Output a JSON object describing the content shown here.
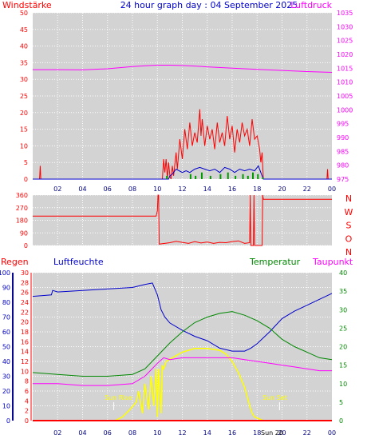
{
  "colors": {
    "background": "#ffffff",
    "plot": "#d3d3d3",
    "grid": "#ffffff",
    "wind": "#ff0000",
    "gust_avg": "#0000cc",
    "wind_green": "#009900",
    "pressure": "#ff00ff",
    "direction": "#ff0000",
    "rain": "#ff0000",
    "humidity": "#0000cc",
    "temperature": "#008800",
    "dewpoint": "#ff00ff",
    "solar": "#ffff00",
    "sun_label": "#ffff00"
  },
  "page": {
    "title": "24 hour graph day : 04 September 2025"
  },
  "chart_data": [
    {
      "type": "line",
      "title": "24 hour graph day : 04 September 2025",
      "left_label": "Windstärke",
      "right_label": "Luftdruck",
      "y_left_ticks": [
        "50",
        "45",
        "40",
        "35",
        "30",
        "25",
        "20",
        "15",
        "10",
        "5",
        "0"
      ],
      "y_right_ticks": [
        "1035",
        "1030",
        "1025",
        "1020",
        "1015",
        "1010",
        "1005",
        "1000",
        "995",
        "990",
        "985",
        "980",
        "975"
      ],
      "x_ticks": [
        "02",
        "04",
        "06",
        "08",
        "10",
        "12",
        "14",
        "16",
        "18",
        "20",
        "22",
        "00"
      ],
      "ylim_left": [
        0,
        50
      ],
      "ylim_right": [
        975,
        1035
      ],
      "xlim_hours": [
        0,
        24
      ],
      "grid": true,
      "series": [
        {
          "key": "pressure",
          "axis": "right",
          "x": [
            0,
            2,
            4,
            6,
            8,
            9,
            10,
            11,
            12,
            13,
            14,
            16,
            18,
            20,
            22,
            24
          ],
          "y": [
            1014.5,
            1014.5,
            1014.4,
            1014.8,
            1015.6,
            1015.9,
            1016.1,
            1016.1,
            1016.0,
            1015.8,
            1015.5,
            1015.0,
            1014.6,
            1014.2,
            1013.8,
            1013.5
          ]
        },
        {
          "key": "wind",
          "axis": "left",
          "x": [
            0,
            0.55,
            0.6,
            0.65,
            10.4,
            10.5,
            10.6,
            10.7,
            10.8,
            10.9,
            11.0,
            11.1,
            11.2,
            11.3,
            11.5,
            11.6,
            11.8,
            12.0,
            12.2,
            12.4,
            12.6,
            12.8,
            13.0,
            13.2,
            13.4,
            13.5,
            13.6,
            13.8,
            14.0,
            14.2,
            14.4,
            14.6,
            14.8,
            15.0,
            15.2,
            15.4,
            15.6,
            15.8,
            16.0,
            16.2,
            16.4,
            16.6,
            16.8,
            17.0,
            17.2,
            17.4,
            17.6,
            17.8,
            18.0,
            18.2,
            18.3,
            18.4,
            18.5,
            23.6,
            23.65,
            23.7,
            24
          ],
          "y": [
            0,
            0,
            4,
            0,
            0,
            6,
            2,
            6,
            0,
            5,
            1,
            0,
            4,
            1,
            8,
            3,
            12,
            6,
            15,
            9,
            17,
            10,
            14,
            11,
            21,
            13,
            18,
            10,
            16,
            12,
            15,
            9,
            17,
            11,
            14,
            10,
            19,
            12,
            16,
            8,
            15,
            11,
            17,
            13,
            15,
            10,
            18,
            12,
            13,
            9,
            5,
            8,
            0,
            0,
            3,
            0,
            0
          ]
        },
        {
          "key": "gust_avg",
          "axis": "left",
          "x": [
            0,
            10.9,
            11.0,
            11.2,
            11.5,
            12.0,
            12.3,
            12.6,
            13.0,
            13.4,
            13.8,
            14.2,
            14.6,
            15.0,
            15.4,
            15.8,
            16.2,
            16.6,
            17.0,
            17.4,
            17.8,
            18.1,
            18.3,
            18.5,
            24
          ],
          "y": [
            0,
            0,
            1,
            1.5,
            3,
            2,
            2.5,
            2,
            3,
            3.5,
            3,
            2.5,
            3,
            2,
            3.5,
            3,
            2,
            3,
            2.5,
            3,
            2.5,
            4,
            2,
            0,
            0
          ]
        }
      ],
      "green_bars": {
        "x": [
          10.7,
          12.6,
          13.0,
          13.5,
          14.2,
          15.0,
          15.6,
          16.2,
          16.8,
          17.2,
          17.6,
          18.0,
          18.4
        ],
        "y": [
          1,
          1.5,
          1,
          2,
          1,
          1.5,
          2,
          1,
          1.5,
          1,
          2,
          1.5,
          0.5
        ]
      }
    },
    {
      "type": "line",
      "title": "",
      "y_ticks": [
        "360",
        "270",
        "180",
        "90",
        "0"
      ],
      "ylim": [
        0,
        360
      ],
      "compass_labels": [
        "N",
        "W",
        "S",
        "O",
        "N"
      ],
      "x_ticks": [
        "02",
        "04",
        "06",
        "08",
        "10",
        "12",
        "14",
        "16",
        "18",
        "20",
        "22",
        "00"
      ],
      "xlim_hours": [
        0,
        24
      ],
      "grid": true,
      "series": [
        {
          "key": "direction",
          "x": [
            0,
            9.0,
            9.9,
            10.0,
            10.05,
            10.1,
            10.15,
            11,
            11.5,
            12,
            12.5,
            13,
            13.5,
            14,
            14.5,
            15,
            15.5,
            16,
            16.5,
            17,
            17.4,
            17.45,
            17.5,
            17.7,
            17.75,
            17.8,
            18.4,
            18.45,
            18.5,
            18.6,
            24
          ],
          "y": [
            210,
            210,
            210,
            250,
            360,
            360,
            10,
            20,
            30,
            22,
            15,
            28,
            18,
            25,
            15,
            22,
            20,
            28,
            33,
            15,
            20,
            360,
            0,
            0,
            360,
            0,
            0,
            360,
            330,
            330,
            330
          ]
        }
      ]
    },
    {
      "type": "line",
      "title": "",
      "labels": {
        "rain": "Regen",
        "humidity": "Luftfeuchte",
        "temperature": "Temperatur",
        "dewpoint": "Taupunkt"
      },
      "humidity_ticks": [
        "100",
        "90",
        "80",
        "70",
        "60",
        "50",
        "40",
        "30",
        "20",
        "10",
        "0"
      ],
      "rain_ticks": [
        "30",
        "28",
        "26",
        "24",
        "22",
        "20",
        "18",
        "16",
        "14",
        "12",
        "10",
        "8",
        "6",
        "4",
        "2",
        "0"
      ],
      "temp_ticks": [
        "40",
        "35",
        "30",
        "25",
        "20",
        "15",
        "10",
        "5",
        "0"
      ],
      "x_ticks": [
        "02",
        "04",
        "06",
        "08",
        "10",
        "12",
        "14",
        "16",
        "18",
        "20",
        "22",
        "00"
      ],
      "ylim_humidity": [
        0,
        100
      ],
      "ylim_rain": [
        0,
        30
      ],
      "ylim_temp": [
        0,
        40
      ],
      "xlim_hours": [
        0,
        24
      ],
      "grid": true,
      "annotations": {
        "sunrise": "Sun Rise",
        "sunset": "Sun Set",
        "sunset_time": "Sun 20"
      },
      "sunrise_hour": 6.5,
      "sunset_hour": 19.8,
      "series": [
        {
          "key": "humidity",
          "axis": "humidity",
          "x": [
            0,
            1.5,
            1.6,
            2,
            4,
            6,
            8,
            9,
            9.6,
            10,
            10.3,
            10.6,
            11,
            12,
            13,
            14,
            15,
            16,
            17,
            17.5,
            18,
            19,
            20,
            21,
            22,
            23,
            24
          ],
          "y": [
            84,
            85,
            88,
            87,
            88,
            89,
            90,
            92,
            93,
            85,
            75,
            70,
            66,
            61,
            57,
            54,
            49,
            47,
            47,
            49,
            52,
            60,
            69,
            74,
            78,
            82,
            86
          ]
        },
        {
          "key": "temperature",
          "axis": "temp",
          "x": [
            0,
            2,
            4,
            6,
            8,
            9,
            10,
            11,
            12,
            13,
            14,
            15,
            16,
            17,
            18,
            19,
            20,
            21,
            22,
            23,
            24
          ],
          "y": [
            13,
            12.5,
            12,
            12,
            12.5,
            14,
            17.5,
            21,
            24,
            26.5,
            28,
            29,
            29.5,
            28.5,
            27,
            25,
            22,
            20,
            18.5,
            17,
            16.5
          ]
        },
        {
          "key": "dewpoint",
          "axis": "temp",
          "x": [
            0,
            2,
            4,
            6,
            8,
            9,
            10,
            10.5,
            11,
            12,
            13,
            14,
            15,
            16,
            17,
            18,
            19,
            20,
            21,
            22,
            23,
            24
          ],
          "y": [
            10,
            10,
            9.5,
            9.5,
            10,
            12,
            15.5,
            17,
            16.5,
            17,
            17,
            17,
            17,
            17,
            16.5,
            16,
            15.5,
            15,
            14.5,
            14,
            13.5,
            13.5
          ]
        },
        {
          "key": "solar",
          "axis": "temp",
          "x": [
            0,
            6.6,
            7.2,
            7.8,
            8.3,
            8.5,
            8.8,
            9.0,
            9.3,
            9.5,
            9.7,
            9.9,
            10.0,
            10.1,
            10.3,
            10.4,
            10.5,
            10.7,
            11.2,
            12,
            13,
            14,
            15,
            15.5,
            16,
            16.5,
            17,
            17.4,
            17.6,
            17.8,
            18.5,
            24
          ],
          "y": [
            0,
            0,
            1,
            3,
            5,
            8,
            2,
            10,
            3,
            12,
            4,
            14,
            1,
            14,
            2,
            15,
            14,
            16,
            17,
            18.5,
            19.5,
            19.5,
            19,
            18,
            16,
            13,
            9,
            4,
            2,
            1,
            0,
            0
          ]
        },
        {
          "key": "rain",
          "axis": "rain",
          "x": [
            0,
            24
          ],
          "y": [
            0,
            0
          ]
        }
      ]
    }
  ]
}
